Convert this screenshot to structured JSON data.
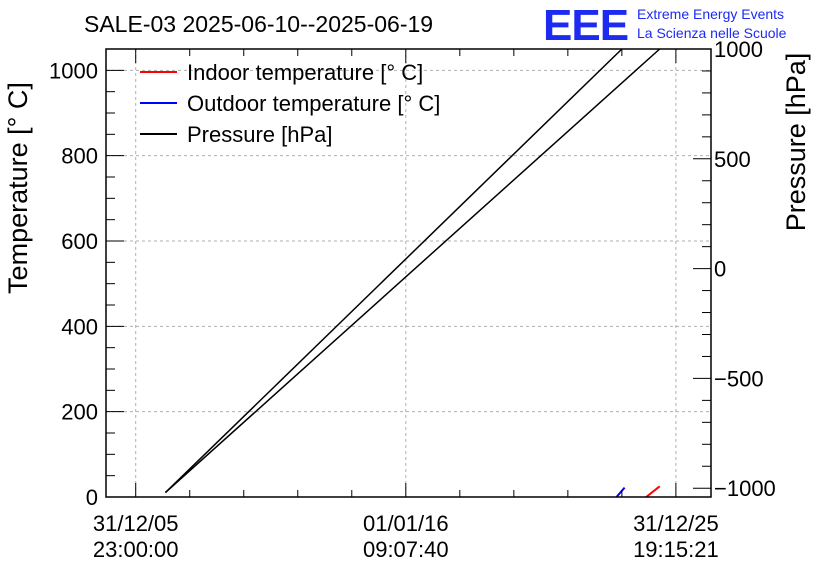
{
  "chart_data": {
    "type": "line",
    "title": "SALE-03 2025-06-10--2025-06-19",
    "ylabel": "Temperature [° C]",
    "y2label": "Pressure [hPa]",
    "xlabel": "",
    "x_ticks": [
      {
        "date": "31/12/05",
        "time": "23:00:00",
        "t": 0
      },
      {
        "date": "01/01/16",
        "time": "09:07:40",
        "t": 0.5
      },
      {
        "date": "31/12/25",
        "time": "19:15:21",
        "t": 1
      }
    ],
    "x_range": [
      -0.055,
      1.065
    ],
    "ylim": [
      0,
      1050
    ],
    "y_ticks": [
      0,
      200,
      400,
      600,
      800,
      1000
    ],
    "y2lim": [
      -1040,
      1000
    ],
    "y2_ticks": [
      -1000,
      -500,
      0,
      500,
      1000
    ],
    "y2_tick_labels": [
      "−1000",
      "−500",
      "0",
      "500",
      "1000"
    ],
    "grid": true,
    "legend_position": "top-left",
    "series": [
      {
        "name": "Indoor temperature [° C]",
        "color": "#ff0000",
        "axis": "left",
        "x": [
          0.945,
          0.97
        ],
        "values": [
          0,
          25
        ]
      },
      {
        "name": "Outdoor temperature [° C]",
        "color": "#0000ff",
        "axis": "left",
        "x": [
          0.89,
          0.905
        ],
        "values": [
          0,
          22
        ]
      },
      {
        "name": "Pressure [hPa]",
        "color": "#000000",
        "axis": "right",
        "segments": [
          {
            "x": [
              0.055,
              0.9
            ],
            "values": [
              -1020,
              1000
            ]
          },
          {
            "x": [
              0.055,
              0.97
            ],
            "values": [
              -1020,
              1000
            ]
          }
        ]
      }
    ]
  },
  "logo": {
    "mark": "EEE",
    "line1": "Extreme Energy Events",
    "line2": "La Scienza nelle Scuole"
  }
}
